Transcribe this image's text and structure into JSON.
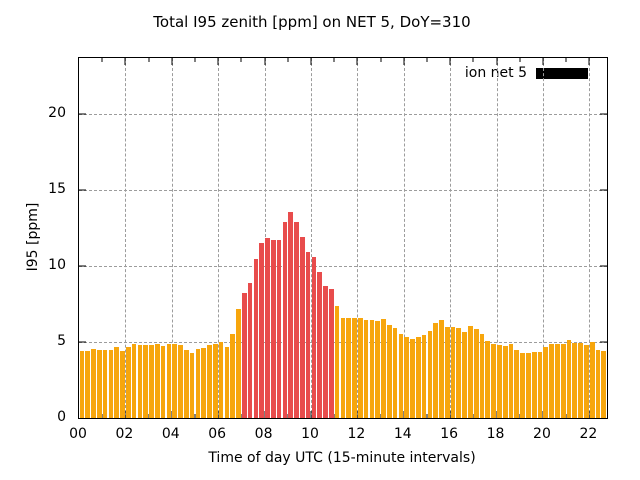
{
  "chart_data": {
    "type": "bar",
    "title": "Total I95 zenith [ppm] on NET 5, DoY=310",
    "xlabel": "Time of day UTC (15-minute intervals)",
    "ylabel": "I95 [ppm]",
    "interval_minutes": 15,
    "start_time": "00:00",
    "values": [
      4.4,
      4.4,
      4.55,
      4.5,
      4.45,
      4.5,
      4.7,
      4.4,
      4.65,
      4.9,
      4.8,
      4.8,
      4.8,
      4.85,
      4.75,
      4.85,
      4.85,
      4.8,
      4.45,
      4.3,
      4.55,
      4.6,
      4.8,
      4.85,
      5.0,
      4.65,
      5.5,
      7.2,
      8.2,
      8.9,
      10.5,
      11.5,
      11.85,
      11.7,
      11.75,
      12.9,
      13.55,
      12.9,
      11.9,
      10.95,
      10.6,
      9.6,
      8.7,
      8.5,
      7.35,
      6.6,
      6.6,
      6.6,
      6.6,
      6.45,
      6.45,
      6.4,
      6.55,
      6.1,
      5.95,
      5.55,
      5.3,
      5.2,
      5.3,
      5.45,
      5.75,
      6.25,
      6.45,
      6.0,
      6.0,
      5.9,
      5.65,
      6.05,
      5.85,
      5.55,
      5.1,
      4.9,
      4.8,
      4.75,
      4.85,
      4.5,
      4.3,
      4.3,
      4.35,
      4.35,
      4.65,
      4.85,
      4.85,
      4.85,
      5.15,
      4.95,
      4.95,
      4.8,
      5.0,
      4.5,
      4.4
    ],
    "highlight_range_indices": [
      28,
      43
    ],
    "bar_color_default": "#f7a60d",
    "bar_color_highlight": "#e84c4c",
    "xlim_hours": [
      0,
      22.76
    ],
    "ylim": [
      0,
      23.7
    ],
    "x_major_tick_hours": [
      0,
      2,
      4,
      6,
      8,
      10,
      12,
      14,
      16,
      18,
      20,
      22
    ],
    "x_major_ticks": [
      "00",
      "02",
      "04",
      "06",
      "08",
      "10",
      "12",
      "14",
      "16",
      "18",
      "20",
      "22"
    ],
    "y_major_tick_values": [
      0,
      5,
      10,
      15,
      20
    ],
    "y_major_ticks": [
      "0",
      "5",
      "10",
      "15",
      "20"
    ],
    "grid": true,
    "legend": {
      "position": "top-right",
      "entries": [
        {
          "label": "ion net 5",
          "swatch_color": "#000000"
        }
      ]
    }
  }
}
